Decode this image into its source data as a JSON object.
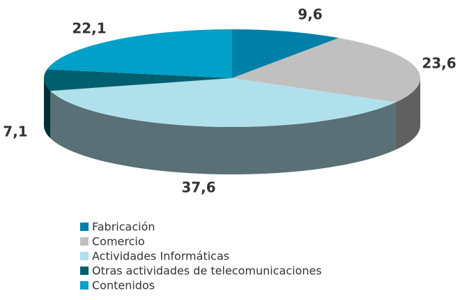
{
  "chart_data": {
    "type": "pie3d",
    "categories": [
      "Fabricación",
      "Comercio",
      "Actividades Informáticas",
      "Otras actividades de telecomunicaciones",
      "Contenidos"
    ],
    "values": [
      9.6,
      23.6,
      37.6,
      7.1,
      22.1
    ],
    "value_labels": [
      "9,6",
      "23,6",
      "37,6",
      "7,1",
      "22,1"
    ],
    "colors": [
      "#0080a8",
      "#c0c0c0",
      "#b0e0ec",
      "#005f6e",
      "#00a0c8"
    ],
    "legend": "bottom"
  }
}
